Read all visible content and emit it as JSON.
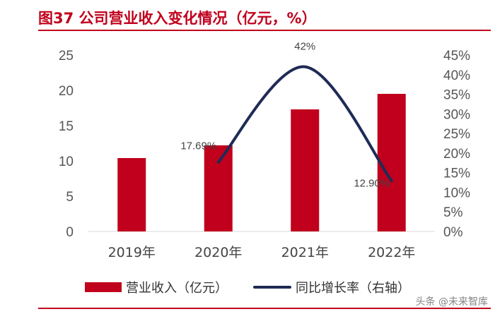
{
  "chart_data": {
    "type": "bar",
    "title": "图37  公司营业收入变化情况（亿元，%）",
    "categories": [
      "2019年",
      "2020年",
      "2021年",
      "2022年"
    ],
    "series": [
      {
        "name": "营业收入（亿元）",
        "type": "bar",
        "axis": "left",
        "values": [
          10.4,
          12.2,
          17.3,
          19.5
        ]
      },
      {
        "name": "同比增长率（右轴）",
        "type": "line",
        "axis": "right",
        "values": [
          null,
          17.69,
          42,
          12.9
        ],
        "labels": [
          "",
          "17.69%",
          "42%",
          "12.90%"
        ]
      }
    ],
    "ylim": [
      0,
      25
    ],
    "y_ticks": [
      "0",
      "5",
      "10",
      "15",
      "20",
      "25"
    ],
    "y2lim": [
      0,
      45
    ],
    "y2_ticks": [
      "0%",
      "5%",
      "10%",
      "15%",
      "20%",
      "25%",
      "30%",
      "35%",
      "40%",
      "45%"
    ],
    "legend": "bottom",
    "grid": false,
    "colors": {
      "bar": "#c0001c",
      "line": "#1f2b55",
      "accent": "#c0001c"
    }
  },
  "watermark": "头条 @未来智库"
}
